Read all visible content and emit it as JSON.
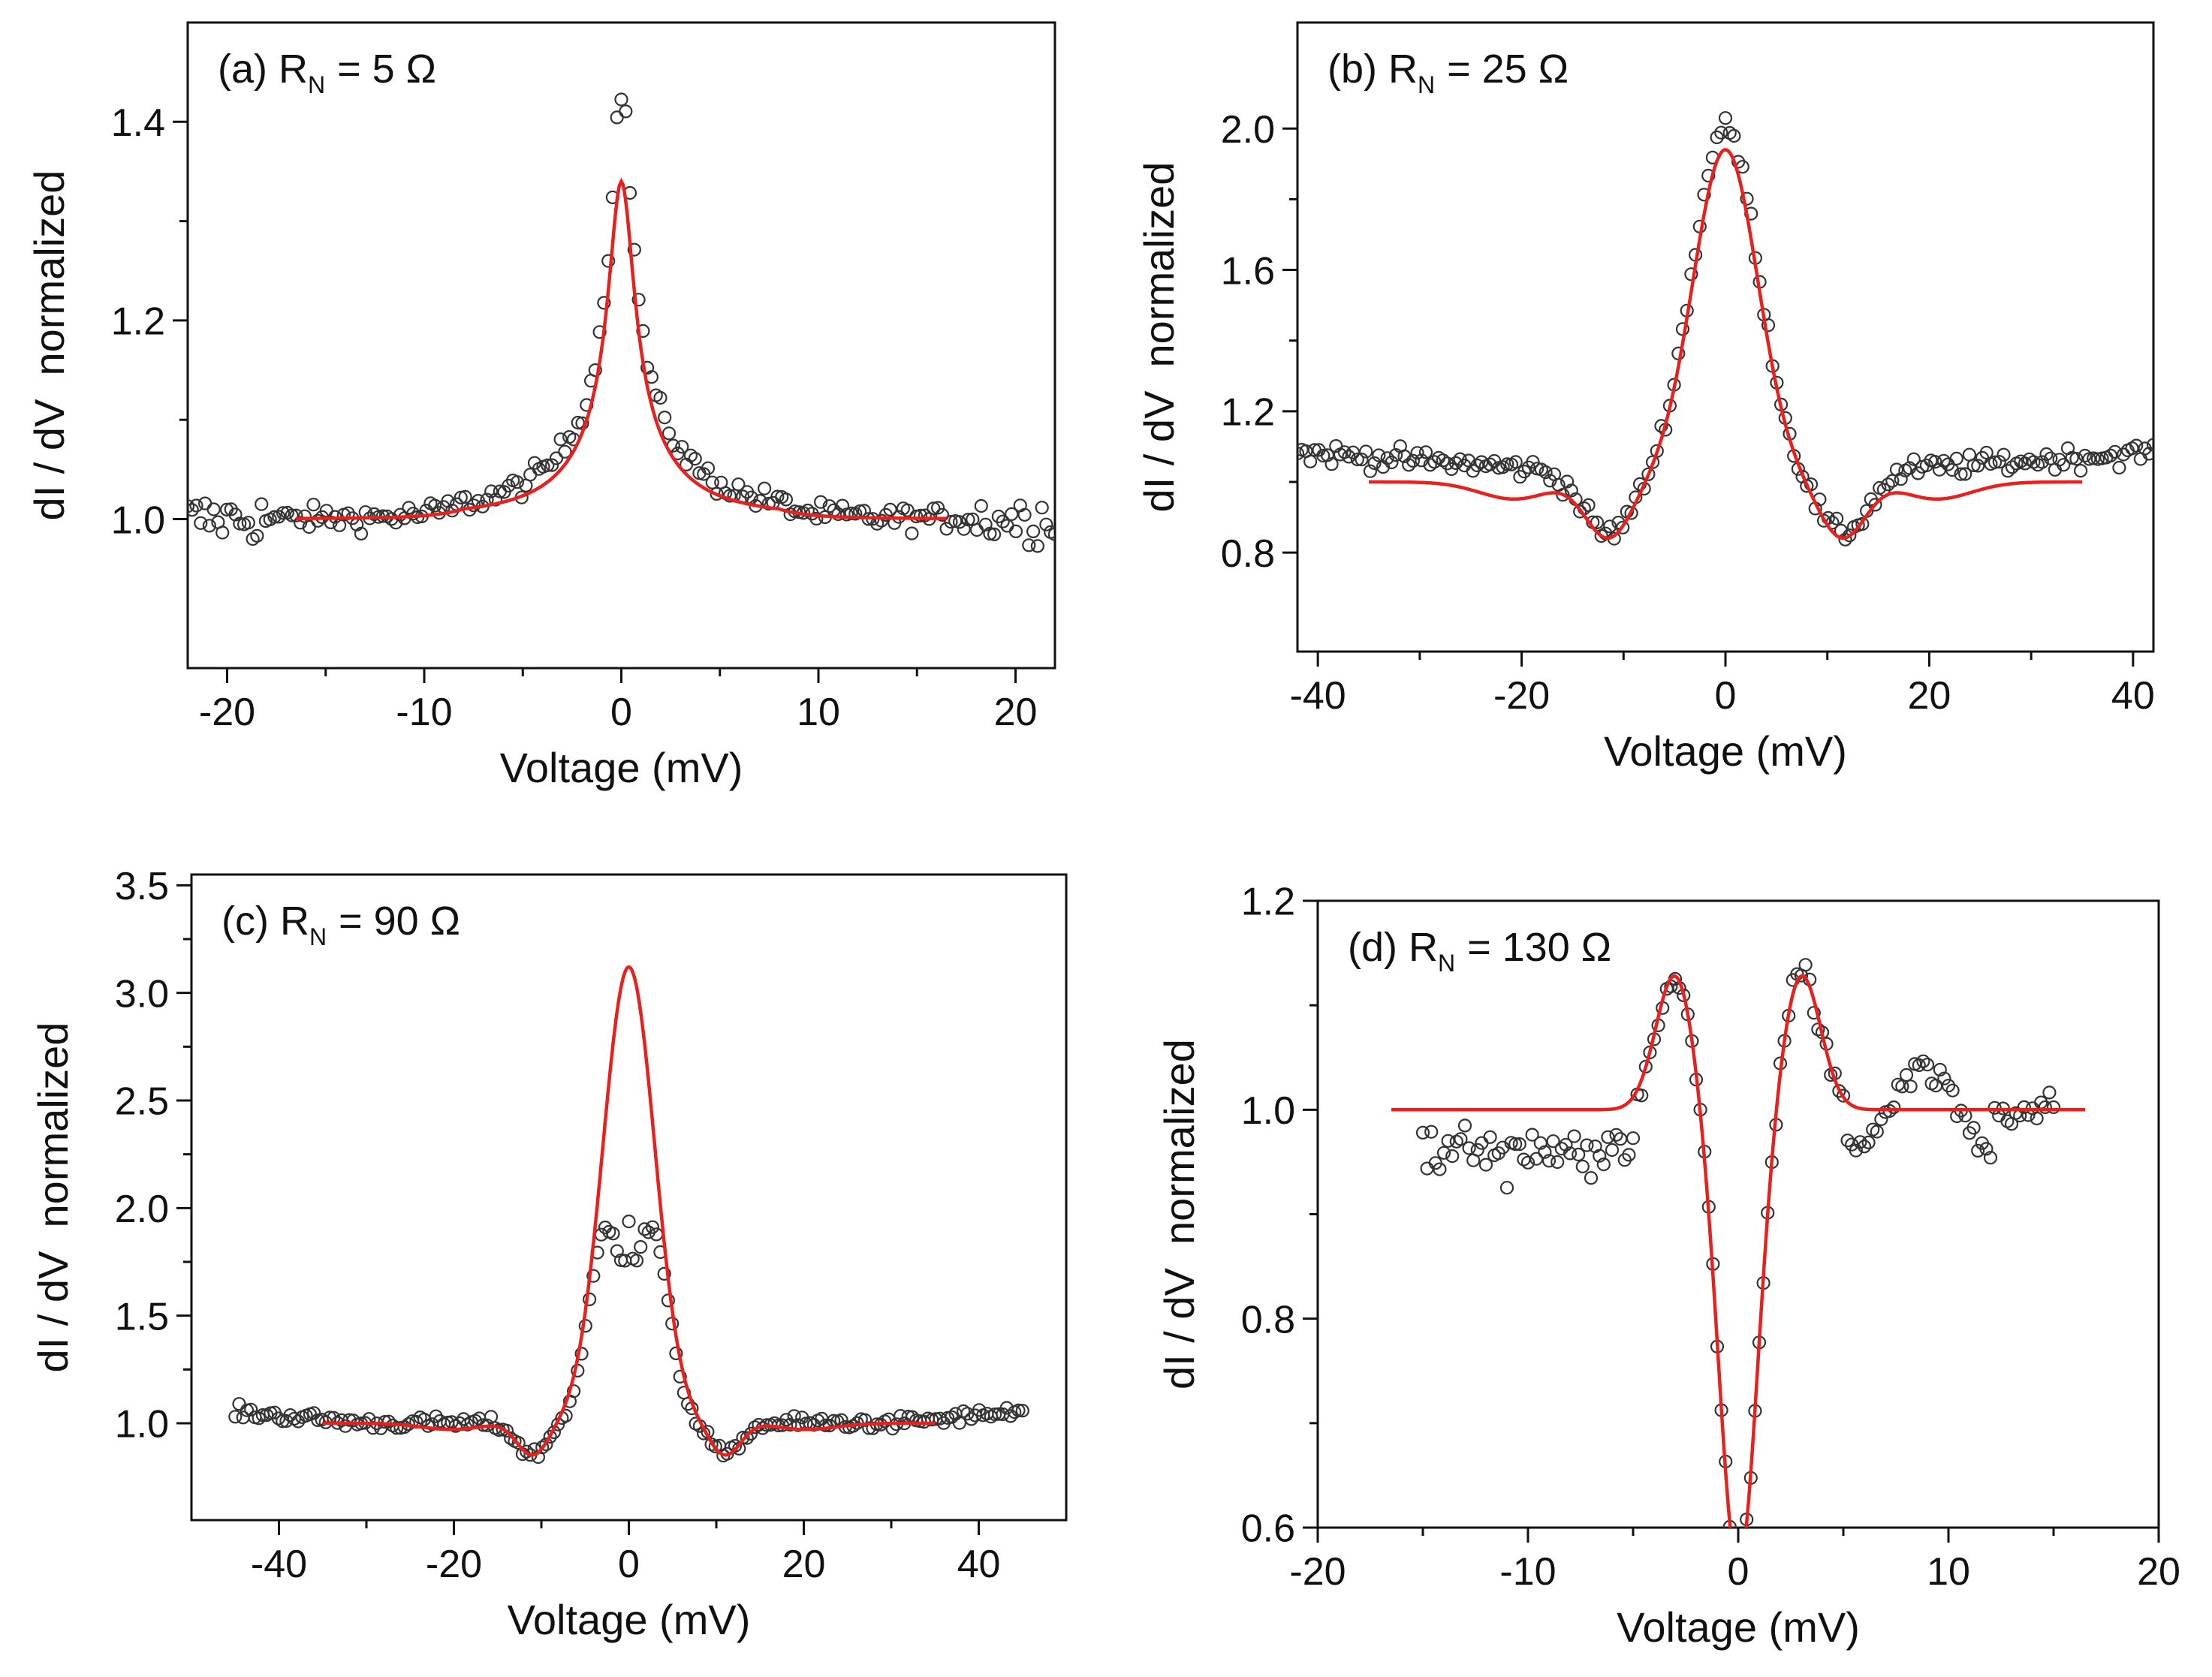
{
  "colors": {
    "fit_line": "#e8201e",
    "data_marker": "#333333",
    "axis": "#111111",
    "background": "#ffffff"
  },
  "chart_data": [
    {
      "id": "a",
      "type": "scatter",
      "panel_label": "(a) R",
      "subscript": "N",
      "label_value": "= 5 Ω",
      "xlabel": "Voltage (mV)",
      "ylabel": "dI / dV  normalized",
      "xlim": [
        -22,
        22
      ],
      "ylim": [
        0.85,
        1.5
      ],
      "xticks": [
        -20,
        -10,
        0,
        10,
        20
      ],
      "xtick_labels": [
        "-20",
        "-10",
        "0",
        "10",
        "20"
      ],
      "yticks": [
        1.0,
        1.2,
        1.4
      ],
      "ytick_labels": [
        "1.0",
        "1.2",
        "1.4"
      ],
      "series": [
        {
          "name": "measured",
          "style": "open-circles",
          "x_range": [
            -22,
            22
          ],
          "x_step": 0.22,
          "shape": {
            "kind": "lorentz-peak",
            "baseline": 1.0,
            "amp": 0.33,
            "width": 0.7,
            "amp2": 0.1,
            "width2": 3.2,
            "noise": 0.012,
            "edge_noise": 0.025
          }
        },
        {
          "name": "fit",
          "style": "line",
          "x_range": [
            -16.5,
            16.5
          ],
          "x_step": 0.1,
          "shape": {
            "kind": "lorentz-peak",
            "baseline": 1.0,
            "amp": 0.26,
            "width": 0.8,
            "amp2": 0.08,
            "width2": 2.6
          }
        }
      ]
    },
    {
      "id": "b",
      "type": "scatter",
      "panel_label": "(b) R",
      "subscript": "N",
      "label_value": "= 25 Ω",
      "xlabel": "Voltage (mV)",
      "ylabel": "dI / dV  normalized",
      "xlim": [
        -42,
        42
      ],
      "ylim": [
        0.52,
        2.3
      ],
      "xticks": [
        -40,
        -20,
        0,
        20,
        40
      ],
      "xtick_labels": [
        "-40",
        "-20",
        "0",
        "20",
        "40"
      ],
      "yticks": [
        0.8,
        1.2,
        1.6,
        2.0
      ],
      "ytick_labels": [
        "0.8",
        "1.2",
        "1.6",
        "2.0"
      ],
      "series": [
        {
          "name": "measured",
          "style": "open-circles",
          "x_range": [
            -42,
            42
          ],
          "x_step": 0.42,
          "shape": {
            "kind": "peak-with-dips",
            "baseline": 1.0,
            "peak_amp": 1.0,
            "peak_width": 4.5,
            "dip_amp": 0.17,
            "dip_center": 11.5,
            "dip_width": 3.5,
            "step_center": 15.5,
            "step_width": 1.5,
            "noise": 0.03,
            "tilt": 0.002
          }
        },
        {
          "name": "fit",
          "style": "line",
          "x_range": [
            -35,
            35
          ],
          "x_step": 0.1,
          "shape": {
            "kind": "peak-with-dips",
            "baseline": 1.0,
            "peak_amp": 0.94,
            "peak_width": 4.5,
            "dip_amp": 0.16,
            "dip_center": 11.5,
            "dip_width": 3.2,
            "step_center": 15.5,
            "step_width": 1.5,
            "bump_amp": 0.05,
            "tilt": 0.0
          }
        }
      ]
    },
    {
      "id": "c",
      "type": "scatter",
      "panel_label": "(c) R",
      "subscript": "N",
      "label_value": "= 90 Ω",
      "xlabel": "Voltage (mV)",
      "ylabel": "dI / dV  normalized",
      "xlim": [
        -50,
        50
      ],
      "ylim": [
        0.55,
        3.55
      ],
      "xticks": [
        -40,
        -20,
        0,
        20,
        40
      ],
      "xtick_labels": [
        "-40",
        "-20",
        "0",
        "20",
        "40"
      ],
      "yticks": [
        1.0,
        1.5,
        2.0,
        2.5,
        3.0,
        3.5
      ],
      "ytick_labels": [
        "1.0",
        "1.5",
        "2.0",
        "2.5",
        "3.0",
        "3.5"
      ],
      "series": [
        {
          "name": "measured",
          "style": "open-circles",
          "x_range": [
            -45,
            45
          ],
          "x_step": 0.45,
          "shape": {
            "kind": "double-peak",
            "baseline": 1.0,
            "peak_amp": 0.8,
            "peak_center": 2.8,
            "peak_width": 2.5,
            "center_spike": 2.1,
            "spike_width": 0.35,
            "dip_amp": 0.15,
            "dip_center": 11.0,
            "dip_width": 2.5,
            "noise": 0.03,
            "tilt": 0.0035
          }
        },
        {
          "name": "fit",
          "style": "line",
          "x_range": [
            -35,
            35
          ],
          "x_step": 0.1,
          "shape": {
            "kind": "peak-with-dips",
            "baseline": 1.0,
            "peak_amp": 2.12,
            "peak_width": 4.2,
            "dip_amp": 0.15,
            "dip_center": 11.0,
            "dip_width": 2.5,
            "step_center": 15.0,
            "step_width": 1.5,
            "bump_amp": 0.03,
            "tilt": 0.0
          }
        }
      ]
    },
    {
      "id": "d",
      "type": "scatter",
      "panel_label": "(d) R",
      "subscript": "N",
      "label_value": "= 130 Ω",
      "xlabel": "Voltage (mV)",
      "ylabel": "dI / dV  normalized",
      "xlim": [
        -20,
        20
      ],
      "ylim": [
        0.6,
        1.2
      ],
      "xticks": [
        -20,
        -10,
        0,
        10,
        20
      ],
      "xtick_labels": [
        "-20",
        "-10",
        "0",
        "10",
        "20"
      ],
      "yticks": [
        0.6,
        0.8,
        1.0,
        1.2
      ],
      "ytick_labels": [
        "0.6",
        "0.8",
        "1.0",
        "1.2"
      ],
      "series": [
        {
          "name": "measured",
          "style": "open-circles",
          "x_range": [
            -15,
            15
          ],
          "x_step": 0.2,
          "shape": {
            "kind": "dip-with-peaks",
            "baseline": 1.0,
            "dip_amp": 0.44,
            "dip_width": 1.25,
            "peak_amp": 0.13,
            "peak_center": 3.0,
            "peak_width": 1.3,
            "noise": 0.015,
            "low_left": 0.04
          }
        },
        {
          "name": "fit",
          "style": "line",
          "x_range": [
            -16.5,
            16.5
          ],
          "x_step": 0.05,
          "shape": {
            "kind": "dip-with-peaks",
            "baseline": 1.0,
            "dip_amp": 0.44,
            "dip_width": 1.25,
            "peak_amp": 0.13,
            "peak_center": 3.0,
            "peak_width": 1.3
          }
        }
      ]
    }
  ]
}
